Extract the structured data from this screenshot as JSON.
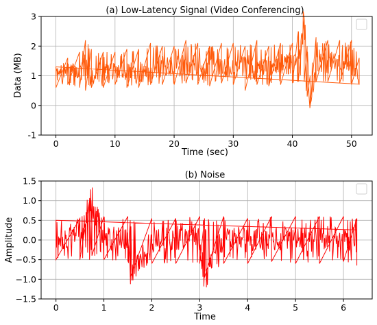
{
  "chart_data": [
    {
      "type": "line",
      "title": "(a) Low-Latency Signal (Video Conferencing)",
      "xlabel": "Time (sec)",
      "ylabel": "Data (MB)",
      "xlim": [
        -2.5,
        53.5
      ],
      "ylim": [
        -1,
        3
      ],
      "xticks": [
        "0",
        "10",
        "20",
        "30",
        "40",
        "50"
      ],
      "yticks": [
        "-1",
        "0",
        "1",
        "2",
        "3"
      ],
      "grid": true,
      "legend": "top-right (empty box)",
      "color": "#ff5a0a",
      "series": [
        {
          "x": [
            0,
            2,
            4,
            5,
            6,
            8,
            10,
            12,
            14,
            16,
            18,
            20,
            22,
            24,
            26,
            28,
            30,
            32,
            34,
            36,
            38,
            40,
            41,
            42,
            42.5,
            43,
            44,
            46,
            48,
            50,
            51.3
          ],
          "y": [
            1.0,
            1.2,
            1.1,
            1.3,
            1.0,
            1.15,
            1.2,
            1.15,
            1.1,
            1.25,
            1.3,
            1.3,
            1.35,
            1.4,
            1.3,
            1.35,
            1.2,
            1.3,
            1.25,
            1.4,
            1.35,
            1.4,
            1.5,
            2.9,
            1.2,
            0.0,
            1.5,
            1.45,
            1.4,
            1.3,
            1.1
          ],
          "range_low": [
            0.6,
            0.7,
            0.6,
            0.5,
            0.6,
            0.6,
            0.7,
            0.6,
            0.6,
            0.7,
            0.7,
            0.7,
            0.75,
            0.7,
            0.65,
            0.75,
            0.7,
            0.5,
            0.7,
            0.65,
            0.7,
            0.75,
            0.8,
            0.8,
            0.3,
            0.0,
            0.8,
            0.8,
            0.75,
            0.7,
            0.7
          ],
          "range_high": [
            1.3,
            1.6,
            1.8,
            2.2,
            1.9,
            1.8,
            1.8,
            1.9,
            1.9,
            2.1,
            2.0,
            2.0,
            2.2,
            2.1,
            2.0,
            2.1,
            2.1,
            2.0,
            2.2,
            2.0,
            2.1,
            2.1,
            2.5,
            2.95,
            2.0,
            1.0,
            2.3,
            2.2,
            2.2,
            2.2,
            1.6
          ]
        }
      ]
    },
    {
      "type": "line",
      "title": "(b) Noise",
      "xlabel": "Time",
      "ylabel": "Amplitude",
      "xlim": [
        -0.31,
        6.6
      ],
      "ylim": [
        -1.5,
        1.5
      ],
      "xticks": [
        "0",
        "1",
        "2",
        "3",
        "4",
        "5",
        "6"
      ],
      "yticks": [
        "−1.5",
        "−1.0",
        "−0.5",
        "0.0",
        "0.5",
        "1.0",
        "1.5"
      ],
      "grid": true,
      "legend": "top-right (empty box)",
      "color": "#ff0000",
      "series": [
        {
          "x": [
            0,
            0.5,
            0.7,
            0.75,
            1.0,
            1.5,
            1.55,
            2.0,
            2.5,
            3.0,
            3.1,
            3.5,
            4.0,
            4.5,
            5.0,
            5.5,
            6.0,
            6.28
          ],
          "y": [
            0.0,
            0.1,
            0.95,
            1.0,
            0.0,
            0.1,
            -0.9,
            0.0,
            0.05,
            0.0,
            -0.95,
            0.05,
            0.0,
            0.05,
            0.0,
            0.05,
            0.0,
            0.0
          ],
          "range_low": [
            -0.5,
            -0.5,
            -0.5,
            -0.4,
            -0.5,
            -0.55,
            -0.95,
            -0.6,
            -0.6,
            -0.6,
            -0.95,
            -0.6,
            -0.6,
            -0.55,
            -0.6,
            -0.6,
            -0.55,
            -0.65
          ],
          "range_high": [
            0.5,
            0.55,
            1.0,
            1.0,
            0.6,
            0.6,
            0.5,
            0.55,
            0.55,
            0.6,
            0.55,
            0.6,
            0.55,
            0.6,
            0.6,
            0.6,
            0.6,
            0.55
          ]
        }
      ]
    }
  ]
}
